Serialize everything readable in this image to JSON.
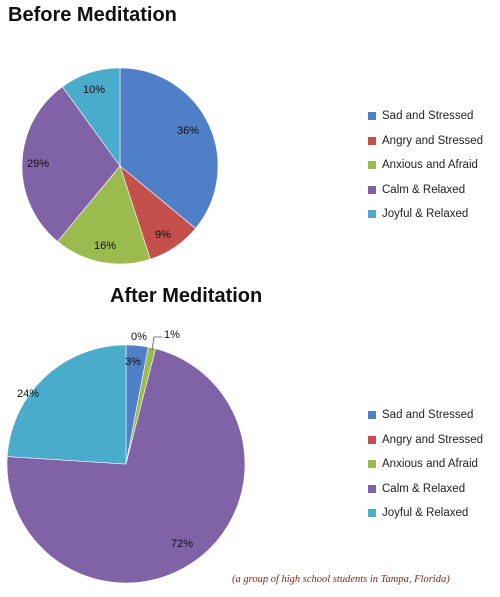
{
  "chart_data": [
    {
      "type": "pie",
      "title": "Before Meditation",
      "categories": [
        "Sad and Stressed",
        "Angry and Stressed",
        "Anxious and Afraid",
        "Calm & Relaxed",
        "Joyful & Relaxed"
      ],
      "values": [
        36,
        9,
        16,
        29,
        10
      ],
      "labels": [
        "36%",
        "9%",
        "16%",
        "29%",
        "10%"
      ],
      "colors": [
        "#4f7fc6",
        "#c4504b",
        "#9bbb4f",
        "#7f63a6",
        "#4aaccb"
      ],
      "legend_position": "right"
    },
    {
      "type": "pie",
      "title": "After Meditation",
      "categories": [
        "Sad and Stressed",
        "Angry and Stressed",
        "Anxious and Afraid",
        "Calm & Relaxed",
        "Joyful & Relaxed"
      ],
      "values": [
        3,
        0,
        1,
        72,
        24
      ],
      "labels": [
        "3%",
        "0%",
        "1%",
        "72%",
        "24%"
      ],
      "colors": [
        "#4f7fc6",
        "#c4504b",
        "#9bbb4f",
        "#7f63a6",
        "#4aaccb"
      ],
      "legend_position": "right"
    }
  ],
  "footnote": "(a group of high school students in Tampa, Florida)"
}
